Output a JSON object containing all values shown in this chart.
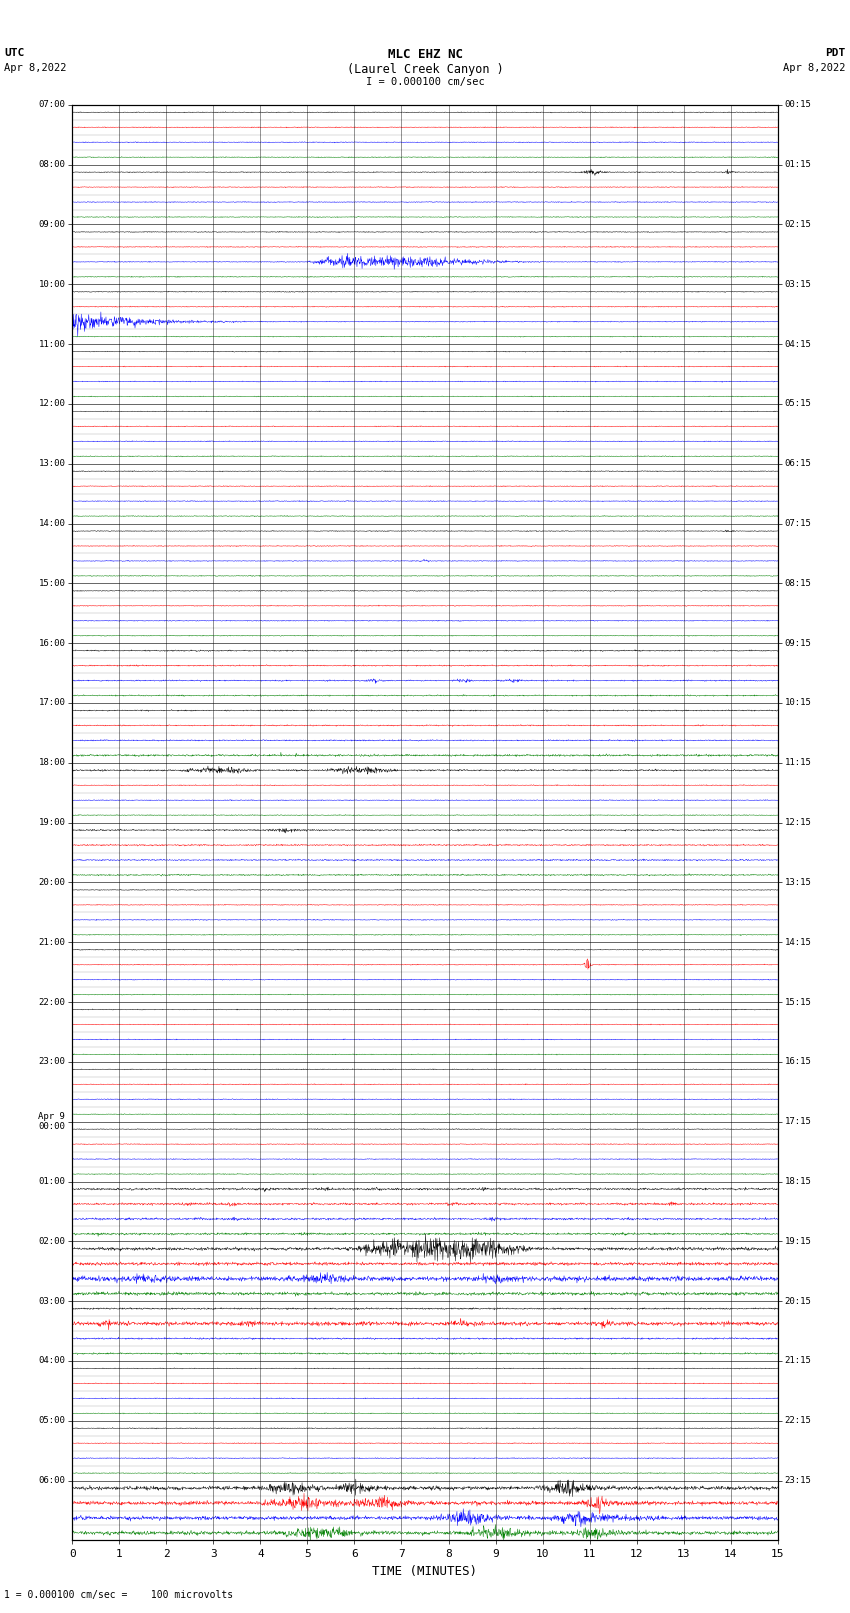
{
  "title_line1": "MLC EHZ NC",
  "title_line2": "(Laurel Creek Canyon )",
  "title_line3": "I = 0.000100 cm/sec",
  "left_header_top": "UTC",
  "left_header_bottom": "Apr 8,2022",
  "right_header_top": "PDT",
  "right_header_bottom": "Apr 8,2022",
  "xlabel": "TIME (MINUTES)",
  "footer": "1 = 0.000100 cm/sec =    100 microvolts",
  "xmin": 0,
  "xmax": 15,
  "xticks": [
    0,
    1,
    2,
    3,
    4,
    5,
    6,
    7,
    8,
    9,
    10,
    11,
    12,
    13,
    14,
    15
  ],
  "bg_color": "#ffffff",
  "trace_colors": [
    "black",
    "red",
    "blue",
    "green"
  ],
  "utc_labels": [
    "07:00",
    "08:00",
    "09:00",
    "10:00",
    "11:00",
    "12:00",
    "13:00",
    "14:00",
    "15:00",
    "16:00",
    "17:00",
    "18:00",
    "19:00",
    "20:00",
    "21:00",
    "22:00",
    "23:00",
    "Apr 9\n00:00",
    "01:00",
    "02:00",
    "03:00",
    "04:00",
    "05:00",
    "06:00"
  ],
  "pdt_labels": [
    "00:15",
    "01:15",
    "02:15",
    "03:15",
    "04:15",
    "05:15",
    "06:15",
    "07:15",
    "08:15",
    "09:15",
    "10:15",
    "11:15",
    "12:15",
    "13:15",
    "14:15",
    "15:15",
    "16:15",
    "17:15",
    "18:15",
    "19:15",
    "20:15",
    "21:15",
    "22:15",
    "23:15"
  ],
  "n_hours": 24,
  "traces_per_hour": 4,
  "figwidth": 8.5,
  "figheight": 16.13,
  "dpi": 100
}
